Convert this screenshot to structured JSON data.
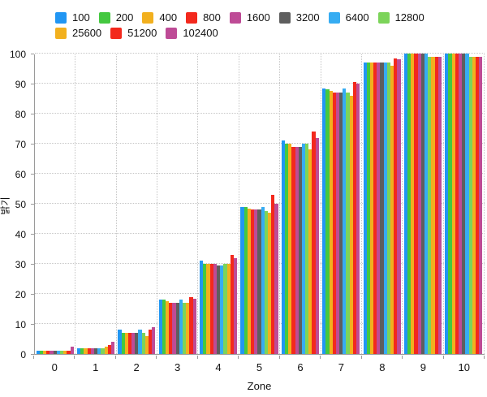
{
  "chart_data": {
    "type": "bar",
    "title": "",
    "xlabel": "Zone",
    "ylabel": "밝기",
    "categories": [
      "0",
      "1",
      "2",
      "3",
      "4",
      "5",
      "6",
      "7",
      "8",
      "9",
      "10"
    ],
    "y_ticks": [
      0,
      10,
      20,
      30,
      40,
      50,
      60,
      70,
      80,
      90,
      100
    ],
    "ylim": [
      0,
      100
    ],
    "grid": "dotted horizontal gridlines at every 10, dotted vertical lines at category boundaries",
    "legend_position": "top",
    "axis_color": "#9a9a9a",
    "gridline_color": "#c6c6c6",
    "series": [
      {
        "name": "100",
        "color": "#2196F3",
        "values": [
          1,
          2,
          8,
          18,
          31,
          49,
          71,
          88.5,
          97,
          100,
          100
        ]
      },
      {
        "name": "200",
        "color": "#44C840",
        "values": [
          1,
          2,
          7,
          18,
          30,
          49,
          70,
          88,
          97,
          100,
          100
        ]
      },
      {
        "name": "400",
        "color": "#F2B01E",
        "values": [
          1,
          2,
          7,
          17.5,
          30,
          48.5,
          70,
          87.5,
          97,
          100,
          100
        ]
      },
      {
        "name": "800",
        "color": "#F3291D",
        "values": [
          1,
          2,
          7,
          17,
          30,
          48,
          69,
          87,
          97,
          100,
          100
        ]
      },
      {
        "name": "1600",
        "color": "#BE4B96",
        "values": [
          1,
          2,
          7,
          17,
          30,
          48,
          69,
          87,
          97,
          100,
          100
        ]
      },
      {
        "name": "3200",
        "color": "#5E5E5E",
        "values": [
          1,
          2,
          7,
          17,
          29.5,
          48,
          69,
          87,
          97,
          100,
          100
        ]
      },
      {
        "name": "6400",
        "color": "#36ACF2",
        "values": [
          1,
          2,
          8,
          18,
          29.5,
          49,
          70,
          88.5,
          97,
          100,
          100
        ]
      },
      {
        "name": "12800",
        "color": "#7CD45A",
        "values": [
          1,
          2,
          7,
          17,
          30,
          47.5,
          70,
          87,
          97,
          99,
          99
        ]
      },
      {
        "name": "25600",
        "color": "#F2B01E",
        "values": [
          1,
          2.5,
          6,
          17,
          30,
          47,
          68,
          86,
          96,
          99,
          99
        ]
      },
      {
        "name": "51200",
        "color": "#F3291D",
        "values": [
          1,
          3,
          8,
          19,
          33,
          53,
          74,
          90.5,
          98.5,
          99,
          99
        ]
      },
      {
        "name": "102400",
        "color": "#BE4B96",
        "values": [
          2.5,
          4,
          9,
          18.5,
          32,
          50,
          72,
          90,
          98,
          99,
          99
        ]
      }
    ]
  }
}
